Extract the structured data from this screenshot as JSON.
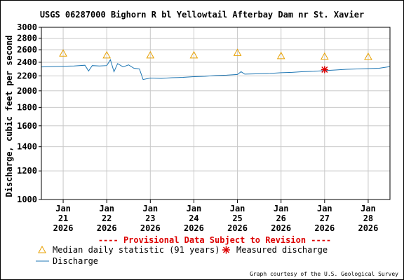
{
  "chart_data": {
    "type": "line",
    "title": "USGS 06287000 Bighorn R bl Yellowtail Afterbay Dam nr St. Xavier",
    "ylabel": "Discharge, cubic feet per second",
    "xlabel": "",
    "y_scale": "log",
    "ylim": [
      1000,
      3000
    ],
    "y_ticks": [
      1000,
      1200,
      1400,
      1600,
      1800,
      2000,
      2200,
      2400,
      2600,
      2800,
      3000
    ],
    "y_tick_labels": [
      "1000",
      "1200",
      "1400",
      "1600",
      "1800",
      "2000",
      "2200",
      "2400",
      "2600",
      "2800",
      "3000"
    ],
    "x_range": [
      "2026-01-20T12:00",
      "2026-01-28T12:00"
    ],
    "x_ticks": [
      {
        "date": "2026-01-21",
        "month": "Jan",
        "day": "21",
        "year": "2026"
      },
      {
        "date": "2026-01-22",
        "month": "Jan",
        "day": "22",
        "year": "2026"
      },
      {
        "date": "2026-01-23",
        "month": "Jan",
        "day": "23",
        "year": "2026"
      },
      {
        "date": "2026-01-24",
        "month": "Jan",
        "day": "24",
        "year": "2026"
      },
      {
        "date": "2026-01-25",
        "month": "Jan",
        "day": "25",
        "year": "2026"
      },
      {
        "date": "2026-01-26",
        "month": "Jan",
        "day": "26",
        "year": "2026"
      },
      {
        "date": "2026-01-27",
        "month": "Jan",
        "day": "27",
        "year": "2026"
      },
      {
        "date": "2026-01-28",
        "month": "Jan",
        "day": "28",
        "year": "2026"
      }
    ],
    "grid": true,
    "series": [
      {
        "name": "Discharge",
        "color": "#1f77b4",
        "points": [
          [
            "2026-01-20T12:00",
            2330
          ],
          [
            "2026-01-20T18:00",
            2335
          ],
          [
            "2026-01-21T00:00",
            2340
          ],
          [
            "2026-01-21T06:00",
            2345
          ],
          [
            "2026-01-21T12:00",
            2355
          ],
          [
            "2026-01-21T14:00",
            2270
          ],
          [
            "2026-01-21T16:00",
            2350
          ],
          [
            "2026-01-21T20:00",
            2345
          ],
          [
            "2026-01-22T00:00",
            2350
          ],
          [
            "2026-01-22T02:00",
            2440
          ],
          [
            "2026-01-22T04:00",
            2260
          ],
          [
            "2026-01-22T06:00",
            2380
          ],
          [
            "2026-01-22T09:00",
            2330
          ],
          [
            "2026-01-22T12:00",
            2360
          ],
          [
            "2026-01-22T15:00",
            2310
          ],
          [
            "2026-01-22T18:00",
            2300
          ],
          [
            "2026-01-22T20:00",
            2150
          ],
          [
            "2026-01-23T00:00",
            2170
          ],
          [
            "2026-01-23T06:00",
            2165
          ],
          [
            "2026-01-23T12:00",
            2175
          ],
          [
            "2026-01-23T18:00",
            2180
          ],
          [
            "2026-01-24T00:00",
            2190
          ],
          [
            "2026-01-24T06:00",
            2195
          ],
          [
            "2026-01-24T12:00",
            2205
          ],
          [
            "2026-01-24T18:00",
            2210
          ],
          [
            "2026-01-25T00:00",
            2220
          ],
          [
            "2026-01-25T02:00",
            2260
          ],
          [
            "2026-01-25T04:00",
            2225
          ],
          [
            "2026-01-25T12:00",
            2230
          ],
          [
            "2026-01-25T18:00",
            2235
          ],
          [
            "2026-01-26T00:00",
            2245
          ],
          [
            "2026-01-26T06:00",
            2250
          ],
          [
            "2026-01-26T12:00",
            2260
          ],
          [
            "2026-01-26T18:00",
            2265
          ],
          [
            "2026-01-27T00:00",
            2275
          ],
          [
            "2026-01-27T06:00",
            2285
          ],
          [
            "2026-01-27T12:00",
            2295
          ],
          [
            "2026-01-27T18:00",
            2300
          ],
          [
            "2026-01-28T00:00",
            2305
          ],
          [
            "2026-01-28T06:00",
            2310
          ],
          [
            "2026-01-28T12:00",
            2335
          ]
        ]
      },
      {
        "name": "Median daily statistic (91 years)",
        "marker": "triangle",
        "color": "#e8a000",
        "points": [
          [
            "2026-01-21",
            2540
          ],
          [
            "2026-01-22",
            2510
          ],
          [
            "2026-01-23",
            2510
          ],
          [
            "2026-01-24",
            2510
          ],
          [
            "2026-01-25",
            2550
          ],
          [
            "2026-01-26",
            2500
          ],
          [
            "2026-01-27",
            2490
          ],
          [
            "2026-01-28",
            2485
          ]
        ]
      },
      {
        "name": "Measured discharge",
        "marker": "asterisk",
        "color": "#dd0000",
        "points": [
          [
            "2026-01-27T00:00",
            2290
          ]
        ]
      }
    ],
    "annotations": {
      "provisional": "---- Provisional Data Subject to Revision ----",
      "credit": "Graph courtesy of the U.S. Geological Survey"
    }
  },
  "legend": {
    "median_label": "Median daily statistic (91 years)",
    "measured_label": "Measured discharge",
    "discharge_label": "Discharge"
  }
}
